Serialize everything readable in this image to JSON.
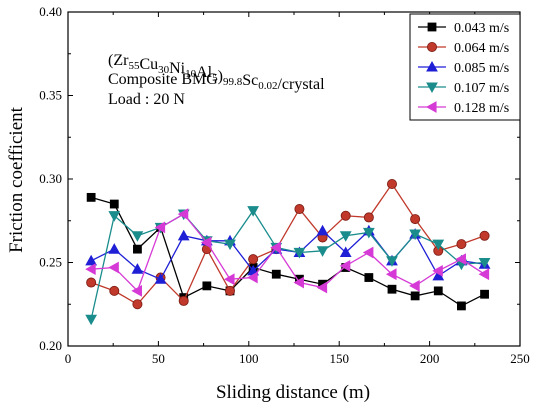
{
  "chart_data": {
    "type": "line",
    "xlabel": "Sliding distance (m)",
    "ylabel": "Friction coefficient",
    "xlim": [
      0,
      250
    ],
    "ylim": [
      0.2,
      0.4
    ],
    "xticks": [
      0,
      50,
      100,
      150,
      200,
      250
    ],
    "xtick_labels": [
      "0",
      "50",
      "100",
      "150",
      "200",
      "250"
    ],
    "yticks": [
      0.2,
      0.25,
      0.3,
      0.35,
      0.4
    ],
    "ytick_labels": [
      "0.20",
      "0.25",
      "0.30",
      "0.35",
      "0.40"
    ],
    "grid": false,
    "legend_position": "top-right",
    "annotations": {
      "line1": {
        "prefix": "(Zr",
        "parts": [
          {
            "text": "Zr",
            "sub": "55"
          },
          {
            "text": "Cu",
            "sub": "30"
          },
          {
            "text": "Ni",
            "sub": "10"
          },
          {
            "text": "Al",
            "sub": "5"
          },
          {
            "text": ")",
            "sub": "99.8"
          },
          {
            "text": "Sc",
            "sub": "0.02"
          },
          {
            "text": "/crystal",
            "sub": ""
          }
        ]
      },
      "line2": "Composite BMG",
      "line3": "Load : 20 N"
    },
    "x": [
      12.8,
      25.6,
      38.4,
      51.2,
      64.0,
      76.8,
      89.6,
      102.4,
      115.2,
      128.0,
      140.8,
      153.6,
      166.4,
      179.2,
      192.0,
      204.8,
      217.6,
      230.4
    ],
    "series": [
      {
        "name": "0.043 m/s",
        "color": "#000000",
        "marker": "square",
        "values": [
          0.289,
          0.285,
          0.258,
          0.271,
          0.229,
          0.236,
          0.233,
          0.247,
          0.243,
          0.24,
          0.237,
          0.247,
          0.241,
          0.234,
          0.23,
          0.233,
          0.224,
          0.231
        ]
      },
      {
        "name": "0.064 m/s",
        "color": "#c0392b",
        "marker": "circle",
        "values": [
          0.238,
          0.233,
          0.225,
          0.241,
          0.227,
          0.258,
          0.233,
          0.252,
          0.258,
          0.282,
          0.265,
          0.278,
          0.277,
          0.297,
          0.276,
          0.257,
          0.261,
          0.266
        ]
      },
      {
        "name": "0.085 m/s",
        "color": "#1f1fd6",
        "marker": "triangle-up",
        "values": [
          0.251,
          0.258,
          0.246,
          0.24,
          0.266,
          0.263,
          0.263,
          0.245,
          0.258,
          0.256,
          0.269,
          0.256,
          0.269,
          0.251,
          0.267,
          0.242,
          0.251,
          0.249
        ]
      },
      {
        "name": "0.107 m/s",
        "color": "#1a8c8c",
        "marker": "triangle-down",
        "values": [
          0.216,
          0.278,
          0.266,
          0.271,
          0.279,
          0.263,
          0.261,
          0.281,
          0.259,
          0.256,
          0.257,
          0.266,
          0.268,
          0.251,
          0.267,
          0.261,
          0.249,
          0.25
        ]
      },
      {
        "name": "0.128 m/s",
        "color": "#d63ad6",
        "marker": "triangle-left",
        "values": [
          0.246,
          0.247,
          0.233,
          0.271,
          0.279,
          0.262,
          0.24,
          0.241,
          0.259,
          0.238,
          0.235,
          0.248,
          0.256,
          0.243,
          0.236,
          0.245,
          0.252,
          0.243
        ]
      }
    ]
  }
}
